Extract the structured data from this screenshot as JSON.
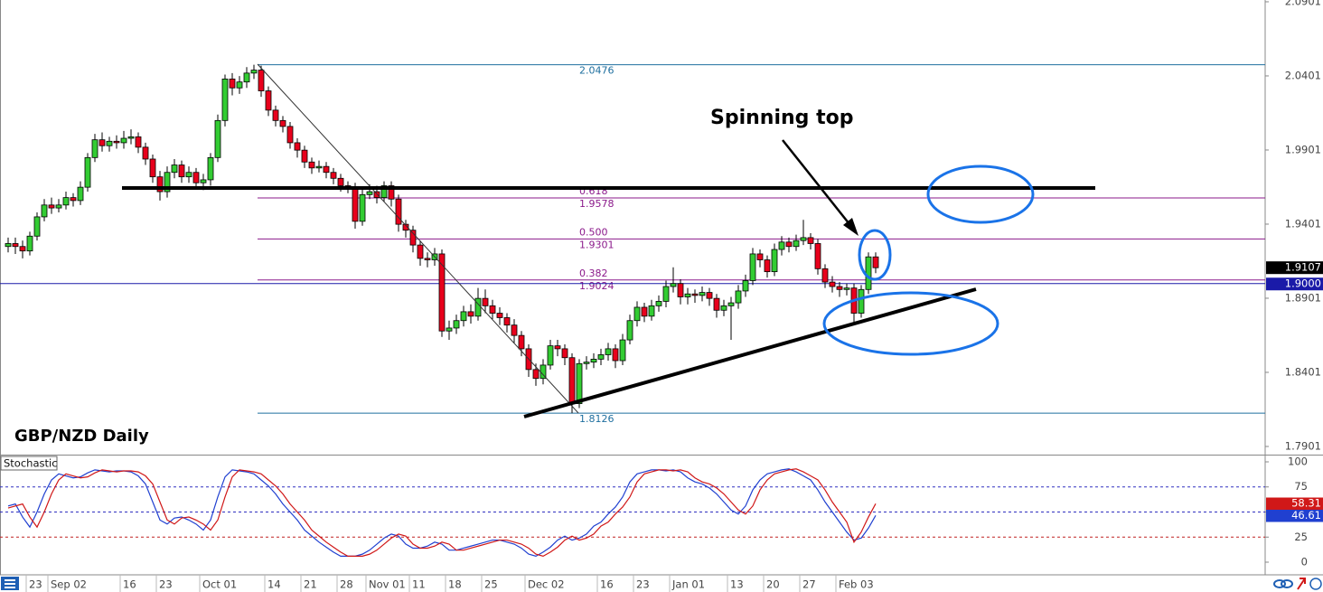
{
  "chart_data": [
    {
      "type": "candlestick",
      "title": "GBP/NZD Daily",
      "annotation": "Spinning top",
      "categories": [
        null,
        null,
        null,
        "23",
        null,
        null,
        "Sep 02",
        null,
        null,
        null,
        null,
        null,
        null,
        null,
        null,
        null,
        "16",
        null,
        null,
        null,
        null,
        "23",
        null,
        null,
        null,
        null,
        null,
        "Oct 01",
        null,
        null,
        null,
        null,
        null,
        null,
        null,
        null,
        "14",
        null,
        null,
        null,
        null,
        "21",
        null,
        null,
        null,
        null,
        "28",
        null,
        null,
        null,
        "Nov 01",
        null,
        null,
        null,
        null,
        null,
        "11",
        null,
        null,
        null,
        null,
        "18",
        null,
        null,
        null,
        null,
        "25",
        null,
        null,
        null,
        null,
        null,
        "Dec 02",
        null,
        null,
        null,
        null,
        null,
        null,
        null,
        null,
        null,
        "16",
        null,
        null,
        null,
        null,
        "23",
        null,
        null,
        null,
        null,
        "Jan 01",
        null,
        null,
        null,
        null,
        null,
        null,
        null,
        "13",
        null,
        null,
        null,
        null,
        "20",
        null,
        null,
        null,
        null,
        "27",
        null,
        null,
        null,
        null,
        "Feb 03",
        null,
        null,
        null,
        null,
        null
      ],
      "open": [
        1.925,
        1.927,
        1.925,
        1.922,
        1.932,
        1.945,
        1.953,
        1.951,
        1.953,
        1.958,
        1.956,
        1.965,
        1.985,
        1.997,
        1.993,
        1.996,
        1.995,
        1.998,
        1.999,
        1.992,
        1.984,
        1.972,
        1.962,
        1.975,
        1.98,
        1.972,
        1.975,
        1.968,
        1.97,
        1.985,
        2.01,
        2.038,
        2.032,
        2.036,
        2.042,
        2.044,
        2.03,
        2.017,
        2.01,
        2.006,
        1.995,
        1.99,
        1.982,
        1.978,
        1.979,
        1.975,
        1.971,
        1.966,
        1.965,
        1.942,
        1.96,
        1.962,
        1.958,
        1.966,
        1.957,
        1.94,
        1.936,
        1.926,
        1.917,
        1.916,
        1.92,
        1.868,
        1.87,
        1.875,
        1.881,
        1.878,
        1.89,
        1.885,
        1.88,
        1.877,
        1.872,
        1.865,
        1.856,
        1.842,
        1.836,
        1.845,
        1.858,
        1.856,
        1.85,
        1.819,
        1.846,
        1.847,
        1.849,
        1.852,
        1.856,
        1.848,
        1.862,
        1.875,
        1.884,
        1.878,
        1.885,
        1.888,
        1.898,
        1.9,
        1.891,
        1.893,
        1.892,
        1.894,
        1.89,
        1.882,
        1.885,
        1.887,
        1.895,
        1.902,
        1.92,
        1.916,
        1.908,
        1.923,
        1.928,
        1.925,
        1.929,
        1.931,
        1.927,
        1.91,
        1.901,
        1.898,
        1.896,
        1.897,
        1.88,
        1.896,
        1.918
      ],
      "high": [
        1.931,
        1.931,
        1.929,
        1.935,
        1.948,
        1.957,
        1.958,
        1.957,
        1.962,
        1.961,
        1.969,
        1.988,
        2.001,
        2.002,
        1.999,
        2.0,
        2.003,
        2.004,
        2.002,
        1.995,
        1.987,
        1.976,
        1.979,
        1.984,
        1.983,
        1.979,
        1.978,
        1.974,
        1.988,
        2.014,
        2.041,
        2.042,
        2.04,
        2.046,
        2.0476,
        2.047,
        2.033,
        2.02,
        2.013,
        2.009,
        1.998,
        1.993,
        1.985,
        1.983,
        1.982,
        1.978,
        1.974,
        1.969,
        1.968,
        1.964,
        1.967,
        1.966,
        1.969,
        1.969,
        1.96,
        1.943,
        1.939,
        1.929,
        1.921,
        1.924,
        1.923,
        1.875,
        1.879,
        1.885,
        1.886,
        1.897,
        1.896,
        1.889,
        1.884,
        1.88,
        1.876,
        1.868,
        1.859,
        1.846,
        1.849,
        1.862,
        1.862,
        1.859,
        1.853,
        1.849,
        1.851,
        1.853,
        1.856,
        1.86,
        1.859,
        1.866,
        1.879,
        1.888,
        1.887,
        1.889,
        1.892,
        1.902,
        1.911,
        1.903,
        1.897,
        1.896,
        1.898,
        1.897,
        1.893,
        1.889,
        1.891,
        1.899,
        1.906,
        1.924,
        1.923,
        1.919,
        1.927,
        1.932,
        1.931,
        1.933,
        1.943,
        1.934,
        1.93,
        1.913,
        1.905,
        1.901,
        1.9,
        1.9,
        1.899,
        1.921,
        1.921
      ],
      "low": [
        1.921,
        1.92,
        1.917,
        1.919,
        1.929,
        1.942,
        1.947,
        1.948,
        1.95,
        1.952,
        1.953,
        1.962,
        1.982,
        1.989,
        1.989,
        1.991,
        1.991,
        1.994,
        1.988,
        1.98,
        1.968,
        1.956,
        1.958,
        1.971,
        1.968,
        1.968,
        1.964,
        1.963,
        1.966,
        1.982,
        2.006,
        2.027,
        2.028,
        2.032,
        2.038,
        2.026,
        2.013,
        2.006,
        2.002,
        1.991,
        1.985,
        1.978,
        1.974,
        1.975,
        1.971,
        1.967,
        1.962,
        1.961,
        1.937,
        1.939,
        1.957,
        1.954,
        1.955,
        1.952,
        1.935,
        1.931,
        1.921,
        1.912,
        1.911,
        1.912,
        1.864,
        1.862,
        1.866,
        1.871,
        1.873,
        1.875,
        1.88,
        1.876,
        1.872,
        1.867,
        1.86,
        1.851,
        1.837,
        1.831,
        1.832,
        1.842,
        1.851,
        1.845,
        1.8126,
        1.816,
        1.842,
        1.843,
        1.845,
        1.848,
        1.843,
        1.845,
        1.859,
        1.871,
        1.874,
        1.875,
        1.881,
        1.884,
        1.894,
        1.886,
        1.886,
        1.887,
        1.888,
        1.885,
        1.877,
        1.878,
        1.862,
        1.883,
        1.891,
        1.899,
        1.911,
        1.904,
        1.905,
        1.919,
        1.921,
        1.922,
        1.926,
        1.923,
        1.906,
        1.897,
        1.894,
        1.891,
        1.892,
        1.874,
        1.877,
        1.893,
        1.907
      ],
      "close": [
        1.927,
        1.925,
        1.922,
        1.932,
        1.945,
        1.953,
        1.951,
        1.953,
        1.958,
        1.956,
        1.965,
        1.985,
        1.997,
        1.993,
        1.996,
        1.995,
        1.998,
        1.999,
        1.992,
        1.984,
        1.972,
        1.962,
        1.975,
        1.98,
        1.972,
        1.975,
        1.968,
        1.97,
        1.985,
        2.01,
        2.038,
        2.032,
        2.036,
        2.042,
        2.044,
        2.03,
        2.017,
        2.01,
        2.006,
        1.995,
        1.99,
        1.982,
        1.978,
        1.979,
        1.975,
        1.971,
        1.966,
        1.965,
        1.942,
        1.96,
        1.962,
        1.958,
        1.966,
        1.957,
        1.94,
        1.936,
        1.926,
        1.917,
        1.916,
        1.92,
        1.868,
        1.87,
        1.875,
        1.881,
        1.878,
        1.89,
        1.885,
        1.88,
        1.877,
        1.872,
        1.865,
        1.856,
        1.842,
        1.836,
        1.845,
        1.858,
        1.856,
        1.85,
        1.819,
        1.846,
        1.847,
        1.849,
        1.852,
        1.856,
        1.848,
        1.862,
        1.875,
        1.884,
        1.878,
        1.885,
        1.888,
        1.898,
        1.9,
        1.891,
        1.893,
        1.892,
        1.894,
        1.89,
        1.882,
        1.885,
        1.887,
        1.895,
        1.902,
        1.92,
        1.916,
        1.908,
        1.923,
        1.928,
        1.925,
        1.929,
        1.931,
        1.927,
        1.91,
        1.901,
        1.898,
        1.896,
        1.897,
        1.88,
        1.896,
        1.918,
        1.9107
      ],
      "up_color": "#33cc33",
      "down_color": "#e8001c",
      "ylim": [
        1.7846,
        2.0913
      ],
      "yticks": [
        2.0901,
        2.0401,
        1.9901,
        1.9401,
        1.8901,
        1.8401,
        1.7901
      ],
      "grid": false,
      "price_line": {
        "value": 1.9,
        "label": "1.9000"
      },
      "price_line_color": "#1a1aa8",
      "fib_levels": [
        {
          "price": 2.0476,
          "color": "#1f6f9f"
        },
        {
          "ratio": "0.618",
          "price": 1.9578,
          "color": "#8b1a8b"
        },
        {
          "ratio": "0.500",
          "price": 1.9301,
          "color": "#8b1a8b"
        },
        {
          "ratio": "0.382",
          "price": 1.9024,
          "color": "#8b1a8b"
        },
        {
          "price": 1.8126,
          "color": "#1f6f9f"
        }
      ]
    },
    {
      "type": "line",
      "title": "Stochastic",
      "series": [
        {
          "color": "#2040d0",
          "values": [
            56,
            58,
            45,
            35,
            50,
            68,
            82,
            88,
            86,
            84,
            85,
            89,
            92,
            91,
            90,
            91,
            91,
            90,
            86,
            78,
            60,
            42,
            38,
            44,
            45,
            42,
            38,
            32,
            42,
            65,
            85,
            92,
            91,
            90,
            88,
            82,
            76,
            68,
            58,
            50,
            42,
            32,
            26,
            20,
            15,
            10,
            6,
            6,
            6,
            8,
            12,
            18,
            24,
            28,
            26,
            18,
            14,
            14,
            16,
            20,
            18,
            12,
            12,
            14,
            16,
            18,
            20,
            22,
            22,
            20,
            18,
            14,
            8,
            6,
            10,
            15,
            22,
            26,
            22,
            24,
            28,
            36,
            40,
            48,
            55,
            65,
            80,
            88,
            90,
            92,
            92,
            91,
            92,
            90,
            84,
            80,
            78,
            74,
            68,
            60,
            52,
            48,
            56,
            72,
            82,
            88,
            90,
            92,
            93,
            90,
            86,
            82,
            72,
            60,
            50,
            40,
            30,
            22,
            24,
            34,
            46.61
          ]
        },
        {
          "color": "#d01818",
          "values": [
            54,
            56,
            58,
            45,
            35,
            50,
            68,
            82,
            88,
            86,
            84,
            85,
            89,
            92,
            91,
            90,
            91,
            91,
            90,
            86,
            78,
            60,
            42,
            38,
            44,
            45,
            42,
            38,
            32,
            42,
            65,
            85,
            92,
            91,
            90,
            88,
            82,
            76,
            68,
            58,
            50,
            42,
            32,
            26,
            20,
            15,
            10,
            6,
            6,
            6,
            8,
            12,
            18,
            24,
            28,
            26,
            18,
            14,
            14,
            16,
            20,
            18,
            12,
            12,
            14,
            16,
            18,
            20,
            22,
            22,
            20,
            18,
            14,
            8,
            6,
            10,
            15,
            22,
            26,
            22,
            24,
            28,
            36,
            40,
            48,
            55,
            65,
            80,
            88,
            90,
            92,
            92,
            91,
            92,
            90,
            84,
            80,
            78,
            74,
            68,
            60,
            52,
            48,
            56,
            72,
            82,
            88,
            90,
            92,
            93,
            90,
            86,
            82,
            72,
            60,
            50,
            40,
            20,
            30,
            45,
            58.31
          ]
        }
      ],
      "ylim": [
        -11.7,
        106.3
      ],
      "yticks": [
        100,
        75,
        50,
        25,
        0
      ],
      "levels": [
        {
          "value": 75,
          "color": "#3030c0"
        },
        {
          "value": 50,
          "color": "#3030c0"
        },
        {
          "value": 25,
          "color": "#c02020"
        }
      ]
    }
  ]
}
